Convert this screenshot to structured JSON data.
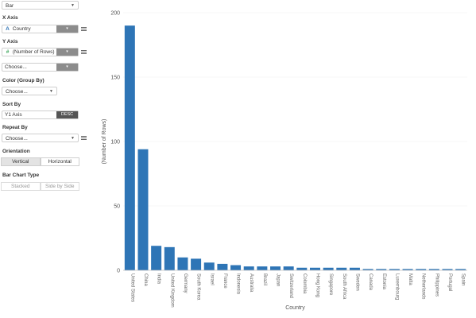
{
  "panel": {
    "chart_type": "Bar",
    "x_axis_label": "X Axis",
    "x_axis_field": "Country",
    "x_axis_field_type": "A",
    "y_axis_label": "Y Axis",
    "y_axis_field": "(Number of Rows)",
    "y_axis_field_type": "#",
    "y_axis_choose": "Choose...",
    "color_label": "Color (Group By)",
    "color_choose": "Choose...",
    "sort_label": "Sort By",
    "sort_field": "Y1 Axis",
    "sort_dir": "DESC",
    "repeat_label": "Repeat By",
    "repeat_choose": "Choose...",
    "orientation_label": "Orientation",
    "orientation_vertical": "Vertical",
    "orientation_horizontal": "Horizontal",
    "bar_type_label": "Bar Chart Type",
    "bar_type_stacked": "Stacked",
    "bar_type_side": "Side by Side"
  },
  "colors": {
    "bar": "#2e75b6"
  },
  "chart_data": {
    "type": "bar",
    "xlabel": "Country",
    "ylabel": "(Number of Rows)",
    "ylim": [
      0,
      200
    ],
    "yticks": [
      0,
      50,
      100,
      150,
      200
    ],
    "categories": [
      "United States",
      "China",
      "India",
      "United Kingdom",
      "Germany",
      "South Korea",
      "Israel",
      "France",
      "Indonesia",
      "Australia",
      "Brazil",
      "Japan",
      "Switzerland",
      "Colombia",
      "Hong Kong",
      "Singapore",
      "South Africa",
      "Sweden",
      "Canada",
      "Estonia",
      "Luxembourg",
      "Malta",
      "Netherlands",
      "Philippines",
      "Portugal",
      "Spain"
    ],
    "values": [
      190,
      94,
      19,
      18,
      10,
      9,
      6,
      5,
      4,
      3,
      3,
      3,
      3,
      2,
      2,
      2,
      2,
      2,
      1,
      1,
      1,
      1,
      1,
      1,
      1,
      1
    ]
  }
}
